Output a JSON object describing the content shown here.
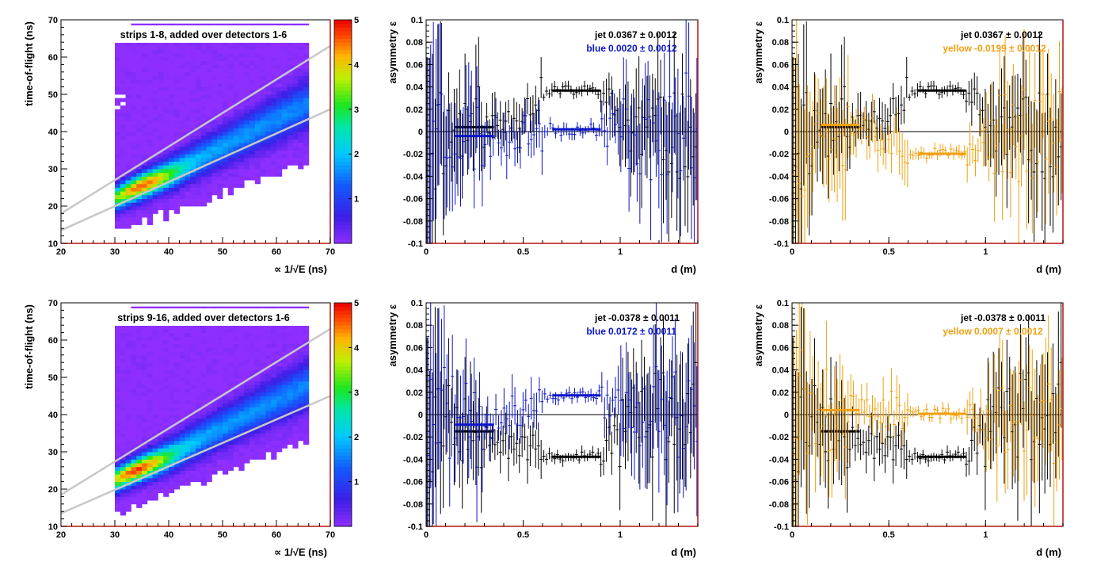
{
  "colors": {
    "jet": "#000000",
    "blue": "#0a14c8",
    "yellow": "#f0a010",
    "frame_right": "#b41414",
    "fill_base": "#8f2fff",
    "fitline": "#c8c8c8"
  },
  "chart_data": [
    {
      "id": "tof-top",
      "type": "heatmap",
      "title": "strips 1-8, added over detectors 1-6",
      "xlabel": "∝ 1/√E (ns)",
      "ylabel": "time-of-flight (ns)",
      "xlim": [
        20,
        70
      ],
      "ylim": [
        10,
        70
      ],
      "xticks": [
        "20",
        "30",
        "40",
        "50",
        "60",
        "70"
      ],
      "yticks": [
        "10",
        "20",
        "30",
        "40",
        "50",
        "60",
        "70"
      ],
      "zlim": [
        0,
        5
      ],
      "zticks": [
        "",
        "1",
        "2",
        "3",
        "4",
        "5"
      ],
      "fill_x_range": [
        30,
        66
      ],
      "band_center": {
        "x0": 30,
        "y0": 22,
        "slope": 0.72
      },
      "peak": [
        34,
        26
      ],
      "cut_lines": [
        {
          "x": [
            20,
            70
          ],
          "y": [
            18,
            63
          ]
        },
        {
          "x": [
            20,
            70
          ],
          "y": [
            13.5,
            46
          ]
        }
      ]
    },
    {
      "id": "asym-blue-top",
      "type": "scatter",
      "xlabel": "d (m)",
      "ylabel": "asymmetry ε",
      "xlim": [
        0,
        1.4
      ],
      "ylim": [
        -0.1,
        0.1
      ],
      "xticks": [
        "0",
        "0.5",
        "1"
      ],
      "yticks": [
        "-0.1",
        "-0.08",
        "-0.06",
        "-0.04",
        "-0.02",
        "0",
        "0.02",
        "0.04",
        "0.06",
        "0.08",
        "0.1"
      ],
      "series": [
        {
          "name": "jet",
          "fit": "0.0367 ± 0.0012",
          "signal": 0.0367,
          "bkg": 0.004,
          "noise": 0.012,
          "color": "#000000",
          "seed": 11
        },
        {
          "name": "blue",
          "fit": "0.0020 ± 0.0012",
          "signal": 0.002,
          "bkg": -0.004,
          "noise": 0.014,
          "color": "#0a14c8",
          "seed": 23
        }
      ]
    },
    {
      "id": "asym-yellow-top",
      "type": "scatter",
      "xlabel": "d (m)",
      "ylabel": "asymmetry ε",
      "xlim": [
        0,
        1.4
      ],
      "ylim": [
        -0.1,
        0.1
      ],
      "xticks": [
        "0",
        "0.5",
        "1"
      ],
      "yticks": [
        "-0.1",
        "-0.08",
        "-0.06",
        "-0.04",
        "-0.02",
        "0",
        "0.02",
        "0.04",
        "0.06",
        "0.08",
        "0.1"
      ],
      "series": [
        {
          "name": "jet",
          "fit": "0.0367 ± 0.0012",
          "signal": 0.0367,
          "bkg": 0.004,
          "noise": 0.012,
          "color": "#000000",
          "seed": 11
        },
        {
          "name": "yellow",
          "fit": "-0.0199 ± 0.0012",
          "signal": -0.0199,
          "bkg": 0.006,
          "noise": 0.014,
          "color": "#f0a010",
          "seed": 37
        }
      ]
    },
    {
      "id": "tof-bottom",
      "type": "heatmap",
      "title": "strips 9-16, added over detectors 1-6",
      "xlabel": "∝ 1/√E (ns)",
      "ylabel": "time-of-flight (ns)",
      "xlim": [
        20,
        70
      ],
      "ylim": [
        10,
        70
      ],
      "xticks": [
        "20",
        "30",
        "40",
        "50",
        "60",
        "70"
      ],
      "yticks": [
        "10",
        "20",
        "30",
        "40",
        "50",
        "60",
        "70"
      ],
      "zlim": [
        0,
        5
      ],
      "zticks": [
        "",
        "1",
        "2",
        "3",
        "4",
        "5"
      ],
      "fill_x_range": [
        30,
        66
      ],
      "band_center": {
        "x0": 30,
        "y0": 22.5,
        "slope": 0.72
      },
      "peak": [
        34,
        25
      ],
      "cut_lines": [
        {
          "x": [
            20,
            70
          ],
          "y": [
            18.5,
            63
          ]
        },
        {
          "x": [
            20,
            70
          ],
          "y": [
            13.5,
            45
          ]
        }
      ]
    },
    {
      "id": "asym-blue-bottom",
      "type": "scatter",
      "xlabel": "d (m)",
      "ylabel": "asymmetry ε",
      "xlim": [
        0,
        1.4
      ],
      "ylim": [
        -0.1,
        0.1
      ],
      "xticks": [
        "0",
        "0.5",
        "1"
      ],
      "yticks": [
        "-0.1",
        "-0.08",
        "-0.06",
        "-0.04",
        "-0.02",
        "0",
        "0.02",
        "0.04",
        "0.06",
        "0.08",
        "0.1"
      ],
      "series": [
        {
          "name": "jet",
          "fit": "-0.0378 ± 0.0011",
          "signal": -0.0378,
          "bkg": -0.015,
          "noise": 0.012,
          "color": "#000000",
          "seed": 53
        },
        {
          "name": "blue",
          "fit": "0.0172 ± 0.0011",
          "signal": 0.0172,
          "bkg": -0.009,
          "noise": 0.014,
          "color": "#0a14c8",
          "seed": 71
        }
      ]
    },
    {
      "id": "asym-yellow-bottom",
      "type": "scatter",
      "xlabel": "d (m)",
      "ylabel": "asymmetry ε",
      "xlim": [
        0,
        1.4
      ],
      "ylim": [
        -0.1,
        0.1
      ],
      "xticks": [
        "0",
        "0.5",
        "1"
      ],
      "yticks": [
        "-0.1",
        "-0.08",
        "-0.06",
        "-0.04",
        "-0.02",
        "0",
        "0.02",
        "0.04",
        "0.06",
        "0.08",
        "0.1"
      ],
      "series": [
        {
          "name": "jet",
          "fit": "-0.0378 ± 0.0011",
          "signal": -0.0378,
          "bkg": -0.015,
          "noise": 0.012,
          "color": "#000000",
          "seed": 53
        },
        {
          "name": "yellow",
          "fit": "0.0007 ± 0.0012",
          "signal": 0.0007,
          "bkg": 0.004,
          "noise": 0.014,
          "color": "#f0a010",
          "seed": 89
        }
      ]
    }
  ]
}
